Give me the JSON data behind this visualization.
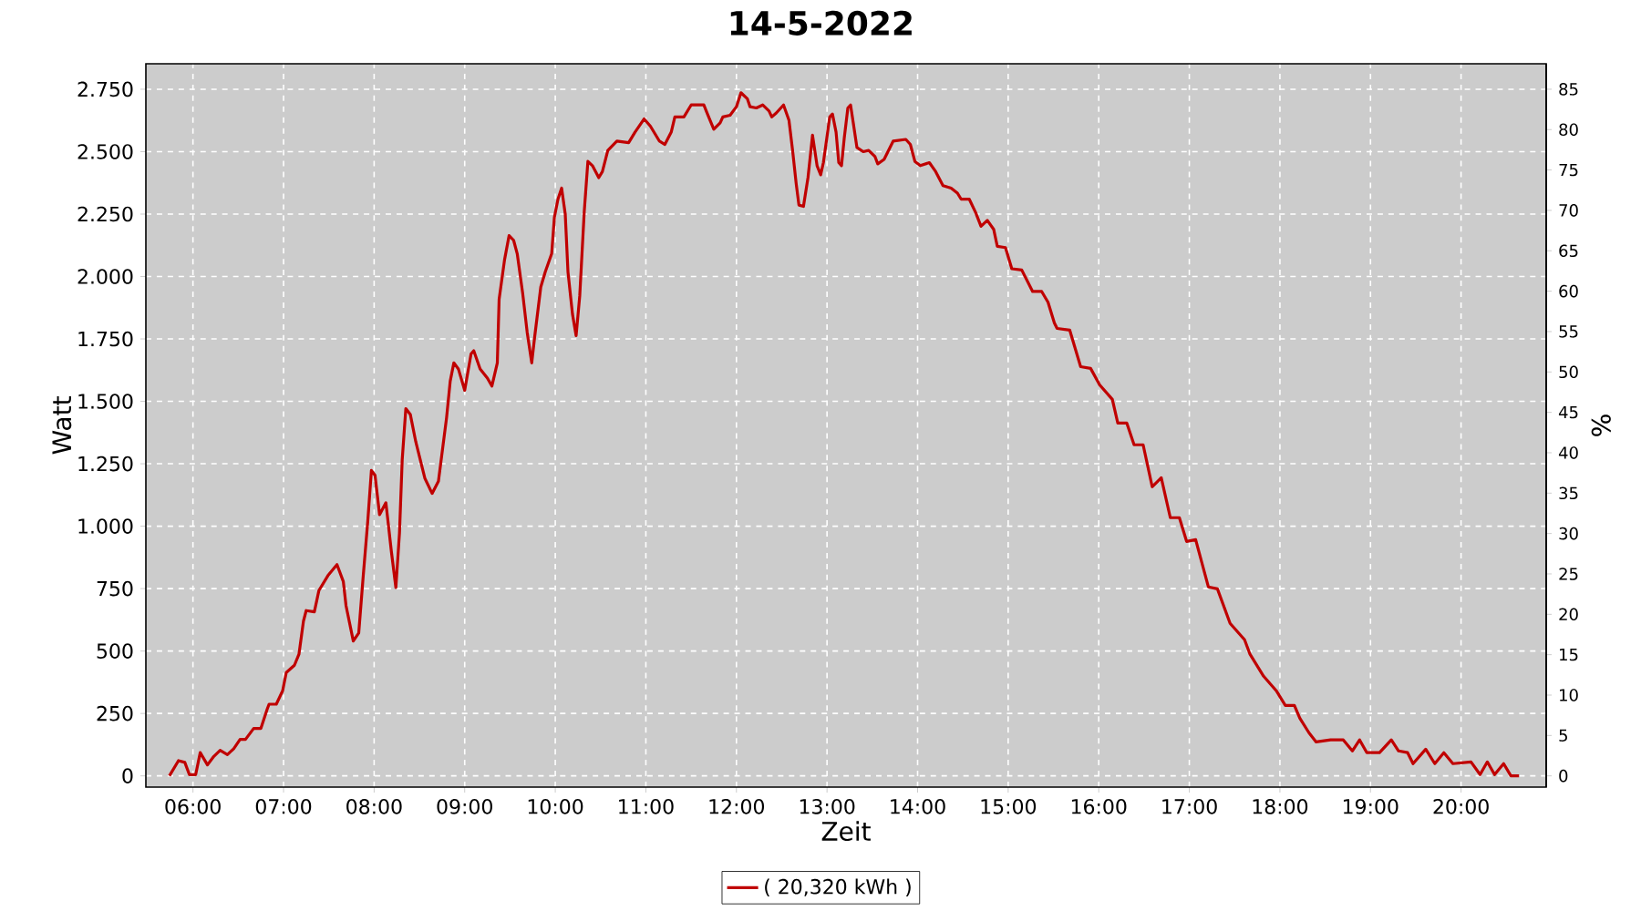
{
  "chart_data": {
    "type": "line",
    "title": "14-5-2022",
    "xlabel": "Zeit",
    "ylabel": "Watt",
    "y2label": "%",
    "xlim": [
      5.48,
      20.94
    ],
    "xticks": [
      {
        "value": 6,
        "label": "06:00"
      },
      {
        "value": 7,
        "label": "07:00"
      },
      {
        "value": 8,
        "label": "08:00"
      },
      {
        "value": 9,
        "label": "09:00"
      },
      {
        "value": 10,
        "label": "10:00"
      },
      {
        "value": 11,
        "label": "11:00"
      },
      {
        "value": 12,
        "label": "12:00"
      },
      {
        "value": 13,
        "label": "13:00"
      },
      {
        "value": 14,
        "label": "14:00"
      },
      {
        "value": 15,
        "label": "15:00"
      },
      {
        "value": 16,
        "label": "16:00"
      },
      {
        "value": 17,
        "label": "17:00"
      },
      {
        "value": 18,
        "label": "18:00"
      },
      {
        "value": 19,
        "label": "19:00"
      },
      {
        "value": 20,
        "label": "20:00"
      }
    ],
    "ylim": [
      -45,
      2852
    ],
    "yticks": [
      0,
      250,
      500,
      750,
      {
        "value": 1000,
        "label": "1.000"
      },
      {
        "value": 1250,
        "label": "1.250"
      },
      {
        "value": 1500,
        "label": "1.500"
      },
      {
        "value": 1750,
        "label": "1.750"
      },
      {
        "value": 2000,
        "label": "2.000"
      },
      {
        "value": 2250,
        "label": "2.250"
      },
      {
        "value": 2500,
        "label": "2.500"
      },
      {
        "value": 2750,
        "label": "2.750"
      }
    ],
    "y2lim": [
      -1.39,
      88.15
    ],
    "y2ticks": [
      0,
      5,
      10,
      15,
      20,
      25,
      30,
      35,
      40,
      45,
      50,
      55,
      60,
      65,
      70,
      75,
      80,
      85
    ],
    "grid": true,
    "legend": "bottom",
    "marker": "none",
    "line_style": "solid",
    "series": [
      {
        "name": "( 20,320 kWh )",
        "color": "#c00000",
        "x": [
          5.74,
          5.84,
          5.91,
          5.96,
          6.03,
          6.08,
          6.16,
          6.23,
          6.3,
          6.38,
          6.45,
          6.52,
          6.58,
          6.67,
          6.75,
          6.82,
          6.84,
          6.92,
          6.99,
          7.03,
          7.12,
          7.17,
          7.22,
          7.25,
          7.34,
          7.39,
          7.49,
          7.59,
          7.66,
          7.69,
          7.77,
          7.83,
          7.88,
          7.93,
          7.97,
          8.01,
          8.06,
          8.13,
          8.16,
          8.19,
          8.24,
          8.28,
          8.31,
          8.35,
          8.4,
          8.46,
          8.56,
          8.64,
          8.71,
          8.8,
          8.84,
          8.88,
          8.93,
          9.0,
          9.07,
          9.1,
          9.17,
          9.25,
          9.3,
          9.36,
          9.38,
          9.44,
          9.49,
          9.54,
          9.58,
          9.64,
          9.69,
          9.74,
          9.77,
          9.84,
          9.89,
          9.96,
          9.99,
          10.03,
          10.07,
          10.11,
          10.14,
          10.19,
          10.23,
          10.27,
          10.32,
          10.36,
          10.41,
          10.48,
          10.52,
          10.58,
          10.68,
          10.81,
          10.88,
          10.98,
          11.05,
          11.15,
          11.21,
          11.28,
          11.32,
          11.42,
          11.5,
          11.64,
          11.68,
          11.75,
          11.82,
          11.85,
          11.93,
          12.0,
          12.05,
          12.12,
          12.15,
          12.22,
          12.29,
          12.36,
          12.39,
          12.44,
          12.52,
          12.58,
          12.62,
          12.66,
          12.69,
          12.74,
          12.79,
          12.84,
          12.89,
          12.93,
          12.96,
          13.03,
          13.06,
          13.1,
          13.13,
          13.16,
          13.19,
          13.23,
          13.26,
          13.29,
          13.33,
          13.4,
          13.46,
          13.53,
          13.56,
          13.63,
          13.73,
          13.87,
          13.92,
          13.97,
          14.03,
          14.13,
          14.2,
          14.28,
          14.37,
          14.44,
          14.48,
          14.57,
          14.64,
          14.7,
          14.77,
          14.84,
          14.88,
          14.97,
          15.04,
          15.15,
          15.27,
          15.37,
          15.44,
          15.51,
          15.54,
          15.68,
          15.8,
          15.91,
          16.01,
          16.15,
          16.21,
          16.31,
          16.39,
          16.49,
          16.59,
          16.69,
          16.79,
          16.89,
          16.97,
          17.07,
          17.21,
          17.31,
          17.45,
          17.61,
          17.67,
          17.82,
          17.96,
          18.06,
          18.16,
          18.22,
          18.32,
          18.4,
          18.56,
          18.7,
          18.8,
          18.88,
          18.96,
          19.1,
          19.23,
          19.31,
          19.41,
          19.47,
          19.61,
          19.71,
          19.81,
          19.91,
          20.11,
          20.21,
          20.29,
          20.37,
          20.47,
          20.55,
          20.64
        ],
        "values": [
          0,
          61,
          54,
          5,
          5,
          93,
          44,
          78,
          102,
          85,
          109,
          146,
          146,
          190,
          190,
          268,
          287,
          287,
          341,
          414,
          443,
          487,
          620,
          662,
          657,
          742,
          802,
          846,
          778,
          681,
          540,
          572,
          802,
          1021,
          1223,
          1204,
          1046,
          1094,
          997,
          900,
          754,
          973,
          1265,
          1471,
          1447,
          1338,
          1192,
          1131,
          1180,
          1435,
          1581,
          1654,
          1630,
          1544,
          1690,
          1703,
          1630,
          1593,
          1561,
          1654,
          1909,
          2067,
          2164,
          2145,
          2091,
          1933,
          1776,
          1654,
          1751,
          1958,
          2019,
          2091,
          2237,
          2310,
          2354,
          2250,
          2019,
          1849,
          1763,
          1922,
          2261,
          2461,
          2444,
          2396,
          2420,
          2505,
          2542,
          2536,
          2578,
          2631,
          2602,
          2542,
          2529,
          2578,
          2639,
          2639,
          2687,
          2687,
          2651,
          2590,
          2615,
          2639,
          2646,
          2680,
          2736,
          2712,
          2680,
          2675,
          2687,
          2663,
          2639,
          2655,
          2687,
          2626,
          2505,
          2371,
          2286,
          2281,
          2396,
          2566,
          2444,
          2407,
          2456,
          2639,
          2651,
          2578,
          2456,
          2444,
          2553,
          2675,
          2687,
          2615,
          2517,
          2500,
          2505,
          2480,
          2451,
          2469,
          2542,
          2549,
          2529,
          2461,
          2444,
          2456,
          2420,
          2364,
          2354,
          2334,
          2310,
          2310,
          2257,
          2201,
          2225,
          2189,
          2121,
          2116,
          2031,
          2026,
          1940,
          1940,
          1897,
          1814,
          1792,
          1785,
          1639,
          1632,
          1566,
          1508,
          1413,
          1413,
          1326,
          1326,
          1158,
          1194,
          1034,
          1034,
          939,
          946,
          757,
          749,
          611,
          545,
          487,
          399,
          341,
          282,
          282,
          231,
          173,
          136,
          144,
          144,
          100,
          144,
          93,
          93,
          144,
          100,
          93,
          49,
          107,
          49,
          93,
          49,
          56,
          5,
          56,
          5,
          49,
          0,
          0
        ]
      }
    ]
  }
}
